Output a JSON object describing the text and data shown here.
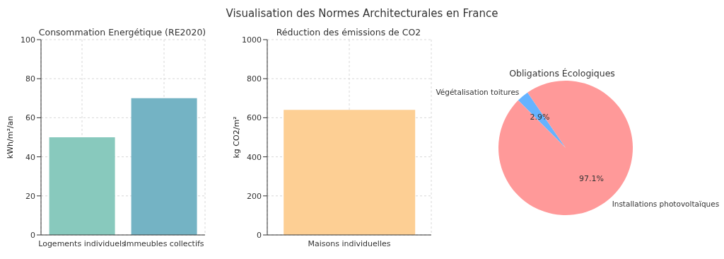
{
  "chart_data": [
    {
      "type": "bar",
      "title": "Consommation Energétique (RE2020)",
      "annotations": [
        "Visualisation des Normes Architecturales en France"
      ],
      "ylabel": "kWh/m²/an",
      "categories": [
        "Logements individuels",
        "Immeubles collectifs"
      ],
      "values": [
        50,
        70
      ],
      "colors": [
        "#88c9bd",
        "#74b3c4"
      ],
      "ylim": [
        0,
        100
      ],
      "yticks": [
        0,
        20,
        40,
        60,
        80,
        100
      ],
      "grid": true
    },
    {
      "type": "bar",
      "title": "Réduction des émissions de CO2",
      "ylabel": "kg CO2/m²",
      "categories": [
        "Maisons individuelles"
      ],
      "values": [
        640
      ],
      "color": "#fdcf94",
      "ylim": [
        0,
        1000
      ],
      "yticks": [
        0,
        200,
        400,
        600,
        800,
        1000
      ],
      "grid": true
    },
    {
      "type": "pie",
      "title": "Obligations Écologiques",
      "categories": [
        "Végétalisation toitures",
        "Installations photovoltaïques"
      ],
      "values": [
        2.9,
        97.1
      ],
      "colors": [
        "#66b3ff",
        "#ff9999"
      ],
      "value_labels": [
        "2.9%",
        "97.1%"
      ]
    }
  ]
}
